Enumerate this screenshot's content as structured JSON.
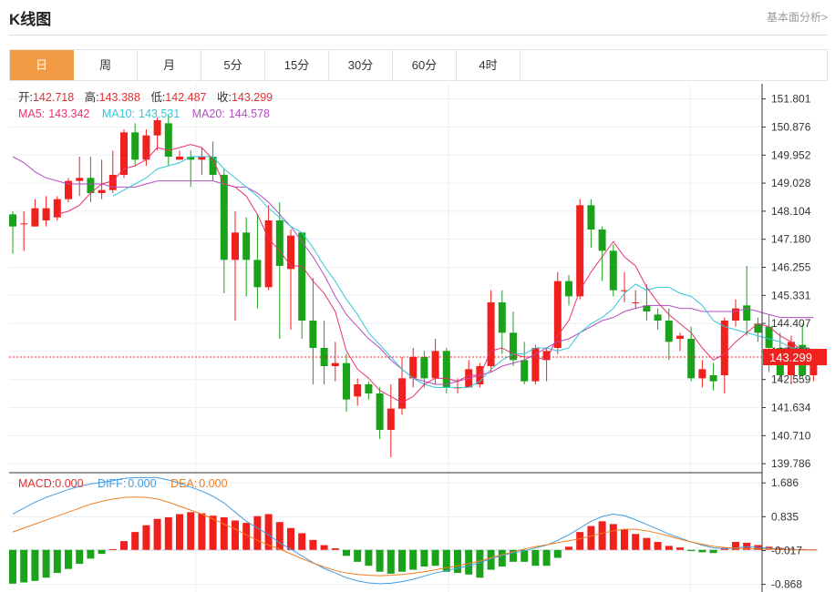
{
  "header": {
    "title": "K线图",
    "fundamental_link": "基本面分析>"
  },
  "tabs": [
    {
      "label": "日",
      "active": true
    },
    {
      "label": "周",
      "active": false
    },
    {
      "label": "月",
      "active": false
    },
    {
      "label": "5分",
      "active": false
    },
    {
      "label": "15分",
      "active": false
    },
    {
      "label": "30分",
      "active": false
    },
    {
      "label": "60分",
      "active": false
    },
    {
      "label": "4时",
      "active": false
    }
  ],
  "ohlc_info": {
    "open_label": "开:",
    "open": "142.718",
    "high_label": "高:",
    "high": "143.388",
    "low_label": "低:",
    "low": "142.487",
    "close_label": "收:",
    "close": "143.299"
  },
  "ma_info": {
    "ma5_label": "MA5:",
    "ma5": "143.342",
    "ma10_label": "MA10:",
    "ma10": "143.531",
    "ma20_label": "MA20:",
    "ma20": "144.578"
  },
  "macd_info": {
    "macd_label": "MACD:",
    "macd": "0.000",
    "diff_label": "DIFF:",
    "diff": "0.000",
    "dea_label": "DEA:",
    "dea": "0.000"
  },
  "colors": {
    "up": "#f0201c",
    "down": "#1aa31a",
    "ma5": "#e8336f",
    "ma10": "#35c7d8",
    "ma20": "#b24fc2",
    "diff": "#3f9de6",
    "dea": "#f07e1f",
    "last_price": "#f0201c",
    "label_red": "#e23030"
  },
  "chart_data": {
    "type": "candlestick",
    "price_axis": {
      "ticks": [
        151.801,
        150.876,
        149.952,
        149.028,
        148.104,
        147.18,
        146.255,
        145.331,
        144.407,
        143.483,
        142.559,
        141.634,
        140.71,
        139.786
      ],
      "labels": [
        "151.801",
        "150.876",
        "149.952",
        "149.028",
        "148.104",
        "147.180",
        "146.255",
        "145.331",
        "144.407",
        "143.483",
        "142.559",
        "141.634",
        "140.710",
        "139.786"
      ],
      "range": [
        139.55,
        152.3
      ]
    },
    "last_price": 143.299,
    "last_price_label": "143.299",
    "candles": [
      [
        148.0,
        147.6,
        148.1,
        146.7
      ],
      [
        147.7,
        147.7,
        148.1,
        146.8
      ],
      [
        147.6,
        148.2,
        148.5,
        147.6
      ],
      [
        147.8,
        148.2,
        148.6,
        147.6
      ],
      [
        147.9,
        148.5,
        148.6,
        147.8
      ],
      [
        148.5,
        149.1,
        149.2,
        148.4
      ],
      [
        149.1,
        149.2,
        149.9,
        148.6
      ],
      [
        149.2,
        148.7,
        149.9,
        148.4
      ],
      [
        148.7,
        148.8,
        149.8,
        148.5
      ],
      [
        148.8,
        149.3,
        150.1,
        148.7
      ],
      [
        149.3,
        150.7,
        150.8,
        149.2
      ],
      [
        150.7,
        149.8,
        151.0,
        149.6
      ],
      [
        149.8,
        150.6,
        150.8,
        149.6
      ],
      [
        150.6,
        151.1,
        151.2,
        150.1
      ],
      [
        151.0,
        149.9,
        151.3,
        149.6
      ],
      [
        149.8,
        149.9,
        150.1,
        149.8
      ],
      [
        149.9,
        149.8,
        150.1,
        148.9
      ],
      [
        149.8,
        149.9,
        150.2,
        149.3
      ],
      [
        149.9,
        149.3,
        150.4,
        149.1
      ],
      [
        149.3,
        146.5,
        149.5,
        145.4
      ],
      [
        146.5,
        147.4,
        148.1,
        144.5
      ],
      [
        147.4,
        146.5,
        147.9,
        145.3
      ],
      [
        146.5,
        145.6,
        148.0,
        144.9
      ],
      [
        145.6,
        147.8,
        148.3,
        145.5
      ],
      [
        147.8,
        146.3,
        148.4,
        143.9
      ],
      [
        146.2,
        147.3,
        147.5,
        144.2
      ],
      [
        147.4,
        144.5,
        147.4,
        143.9
      ],
      [
        144.5,
        143.6,
        145.9,
        142.4
      ],
      [
        143.6,
        143.0,
        144.5,
        142.4
      ],
      [
        143.0,
        143.1,
        143.8,
        142.5
      ],
      [
        143.1,
        141.9,
        143.4,
        141.5
      ],
      [
        142.0,
        142.4,
        142.6,
        141.7
      ],
      [
        142.4,
        142.1,
        142.5,
        141.9
      ],
      [
        142.1,
        140.9,
        142.3,
        140.6
      ],
      [
        140.9,
        141.6,
        142.4,
        140.0
      ],
      [
        141.6,
        142.6,
        143.3,
        141.4
      ],
      [
        142.6,
        143.3,
        143.6,
        142.3
      ],
      [
        143.3,
        142.6,
        143.5,
        142.3
      ],
      [
        142.6,
        143.5,
        143.9,
        142.4
      ],
      [
        143.5,
        142.3,
        143.6,
        142.1
      ],
      [
        142.3,
        142.3,
        142.6,
        142.1
      ],
      [
        142.3,
        142.9,
        143.2,
        142.3
      ],
      [
        142.4,
        143.0,
        143.1,
        142.3
      ],
      [
        143.0,
        145.1,
        145.5,
        142.8
      ],
      [
        145.1,
        144.1,
        145.5,
        143.4
      ],
      [
        144.1,
        143.2,
        144.8,
        143.0
      ],
      [
        143.2,
        142.5,
        143.8,
        142.4
      ],
      [
        142.5,
        143.6,
        143.7,
        142.4
      ],
      [
        143.2,
        143.5,
        143.6,
        142.5
      ],
      [
        143.6,
        145.8,
        146.1,
        143.4
      ],
      [
        145.8,
        145.3,
        146.0,
        145.0
      ],
      [
        145.3,
        148.3,
        148.5,
        145.2
      ],
      [
        148.3,
        147.5,
        148.5,
        146.9
      ],
      [
        147.5,
        146.8,
        147.6,
        145.8
      ],
      [
        146.8,
        145.5,
        147.0,
        145.3
      ],
      [
        145.5,
        145.5,
        146.1,
        145.1
      ],
      [
        145.1,
        145.1,
        145.5,
        144.9
      ],
      [
        145.0,
        144.8,
        145.7,
        144.5
      ],
      [
        144.7,
        144.5,
        144.9,
        144.2
      ],
      [
        144.5,
        143.8,
        144.9,
        143.2
      ],
      [
        143.9,
        144.0,
        144.1,
        143.5
      ],
      [
        143.9,
        142.6,
        144.3,
        142.5
      ],
      [
        142.6,
        142.9,
        143.2,
        142.3
      ],
      [
        142.7,
        142.5,
        143.1,
        142.2
      ],
      [
        142.7,
        144.5,
        144.6,
        142.1
      ],
      [
        144.5,
        144.9,
        145.2,
        144.3
      ],
      [
        145.0,
        144.5,
        146.3,
        144.0
      ],
      [
        144.4,
        144.1,
        144.6,
        143.8
      ],
      [
        144.3,
        143.6,
        144.7,
        142.8
      ],
      [
        143.6,
        142.7,
        144.1,
        142.5
      ],
      [
        142.7,
        143.8,
        144.0,
        142.4
      ],
      [
        143.7,
        142.7,
        144.4,
        142.6
      ],
      [
        142.7,
        143.3,
        143.4,
        142.5
      ]
    ],
    "ma5": [
      null,
      null,
      null,
      null,
      148.0,
      148.1,
      148.3,
      148.7,
      149.0,
      149.1,
      149.5,
      149.6,
      149.8,
      150.2,
      150.1,
      150.2,
      150.3,
      150.2,
      149.8,
      149.0,
      148.9,
      148.6,
      148.0,
      147.2,
      146.8,
      146.3,
      146.3,
      145.8,
      145.4,
      144.8,
      143.5,
      142.9,
      142.6,
      142.2,
      142.0,
      141.8,
      142.0,
      142.4,
      142.6,
      142.6,
      142.5,
      142.7,
      142.7,
      143.5,
      143.6,
      143.4,
      143.3,
      143.3,
      143.2,
      144.0,
      144.5,
      145.5,
      146.1,
      146.6,
      147.1,
      146.6,
      146.3,
      145.6,
      145.1,
      144.7,
      144.4,
      144.1,
      143.6,
      143.2,
      143.4,
      143.8,
      144.1,
      144.4,
      144.3,
      144.0,
      143.8,
      143.5,
      143.3
    ],
    "ma10": [
      null,
      null,
      null,
      null,
      null,
      null,
      null,
      null,
      null,
      148.6,
      148.8,
      149.0,
      149.2,
      149.5,
      149.6,
      149.7,
      149.9,
      149.9,
      149.9,
      149.5,
      149.2,
      148.9,
      148.6,
      148.2,
      147.9,
      147.6,
      147.4,
      146.9,
      146.3,
      145.8,
      145.2,
      144.7,
      144.1,
      143.7,
      143.3,
      142.9,
      142.6,
      142.4,
      142.3,
      142.3,
      142.3,
      142.3,
      142.5,
      142.9,
      143.2,
      143.4,
      143.4,
      143.6,
      143.6,
      143.5,
      143.6,
      144.1,
      144.4,
      144.6,
      144.9,
      145.4,
      145.7,
      145.5,
      145.6,
      145.6,
      145.4,
      145.3,
      145.0,
      144.5,
      144.3,
      144.2,
      144.1,
      144.0,
      143.9,
      143.8,
      143.6,
      143.6,
      143.5
    ],
    "ma20": [
      149.9,
      149.7,
      149.4,
      149.2,
      149.1,
      149.0,
      149.0,
      149.0,
      149.0,
      148.9,
      148.9,
      148.9,
      149.0,
      149.1,
      149.1,
      149.1,
      149.1,
      149.1,
      149.1,
      149.0,
      148.9,
      148.9,
      148.7,
      148.4,
      148.0,
      147.6,
      147.1,
      146.6,
      146.0,
      145.3,
      144.7,
      144.3,
      143.9,
      143.6,
      143.2,
      142.9,
      142.6,
      142.5,
      142.4,
      142.4,
      142.5,
      142.6,
      142.7,
      142.8,
      143.0,
      143.1,
      143.2,
      143.4,
      143.6,
      143.8,
      143.9,
      144.1,
      144.3,
      144.5,
      144.6,
      144.8,
      144.9,
      145.0,
      145.0,
      145.0,
      144.9,
      144.9,
      144.8,
      144.8,
      144.8,
      144.8,
      144.9,
      144.8,
      144.7,
      144.6,
      144.6,
      144.6,
      144.6
    ],
    "macd_axis": {
      "ticks": [
        1.686,
        0.835,
        -0.017,
        -0.868
      ],
      "labels": [
        "1.686",
        "0.835",
        "-0.017",
        "-0.868"
      ],
      "range": [
        -1.06,
        1.92
      ]
    },
    "macd_hist": [
      -0.85,
      -0.82,
      -0.78,
      -0.7,
      -0.58,
      -0.48,
      -0.35,
      -0.22,
      -0.1,
      0.02,
      0.22,
      0.45,
      0.62,
      0.78,
      0.82,
      0.9,
      0.95,
      0.92,
      0.86,
      0.82,
      0.74,
      0.68,
      0.85,
      0.9,
      0.7,
      0.55,
      0.42,
      0.25,
      0.12,
      0.04,
      -0.15,
      -0.3,
      -0.4,
      -0.55,
      -0.6,
      -0.55,
      -0.5,
      -0.42,
      -0.4,
      -0.55,
      -0.58,
      -0.62,
      -0.7,
      -0.5,
      -0.42,
      -0.3,
      -0.3,
      -0.4,
      -0.4,
      -0.2,
      0.08,
      0.45,
      0.6,
      0.72,
      0.65,
      0.52,
      0.4,
      0.3,
      0.2,
      0.1,
      0.06,
      -0.03,
      -0.06,
      -0.08,
      0.05,
      0.2,
      0.18,
      0.12,
      0.08,
      0.05,
      0.03,
      0.02,
      0.01
    ],
    "diff": [
      0.9,
      1.05,
      1.2,
      1.32,
      1.42,
      1.52,
      1.6,
      1.66,
      1.7,
      1.74,
      1.8,
      1.82,
      1.82,
      1.82,
      1.76,
      1.68,
      1.58,
      1.48,
      1.35,
      1.18,
      0.95,
      0.72,
      0.55,
      0.38,
      0.18,
      0.02,
      -0.15,
      -0.32,
      -0.47,
      -0.58,
      -0.7,
      -0.78,
      -0.83,
      -0.85,
      -0.84,
      -0.8,
      -0.74,
      -0.66,
      -0.58,
      -0.52,
      -0.46,
      -0.4,
      -0.32,
      -0.22,
      -0.14,
      -0.07,
      -0.03,
      0.05,
      0.12,
      0.24,
      0.38,
      0.55,
      0.72,
      0.84,
      0.9,
      0.86,
      0.76,
      0.64,
      0.52,
      0.4,
      0.3,
      0.2,
      0.12,
      0.05,
      0.03,
      0.05,
      0.08,
      0.06,
      0.04,
      0.02,
      0.01,
      0.0,
      0.0
    ],
    "dea": [
      0.45,
      0.55,
      0.65,
      0.75,
      0.85,
      0.95,
      1.05,
      1.15,
      1.22,
      1.28,
      1.32,
      1.33,
      1.32,
      1.28,
      1.2,
      1.1,
      1.0,
      0.9,
      0.78,
      0.65,
      0.52,
      0.38,
      0.24,
      0.12,
      0.02,
      -0.1,
      -0.22,
      -0.33,
      -0.43,
      -0.52,
      -0.58,
      -0.62,
      -0.64,
      -0.65,
      -0.64,
      -0.62,
      -0.59,
      -0.55,
      -0.5,
      -0.45,
      -0.4,
      -0.34,
      -0.28,
      -0.2,
      -0.12,
      -0.05,
      0.02,
      0.08,
      0.13,
      0.18,
      0.23,
      0.28,
      0.35,
      0.42,
      0.48,
      0.52,
      0.52,
      0.48,
      0.42,
      0.35,
      0.27,
      0.2,
      0.14,
      0.09,
      0.06,
      0.04,
      0.03,
      0.02,
      0.02,
      0.01,
      0.0,
      0.0,
      0.0
    ]
  }
}
